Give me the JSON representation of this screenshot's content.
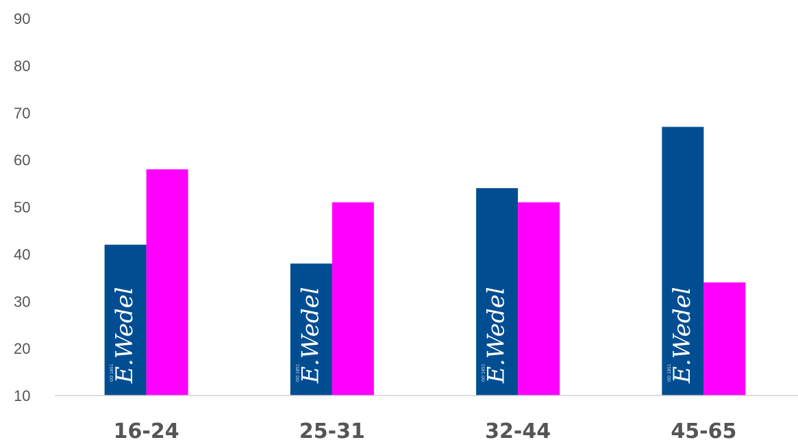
{
  "chart_data": {
    "type": "bar",
    "categories": [
      "16-24",
      "25-31",
      "32-44",
      "45-65"
    ],
    "series": [
      {
        "values": [
          42,
          38,
          54,
          67
        ],
        "color": "#004d92"
      },
      {
        "values": [
          58,
          51,
          51,
          34
        ],
        "color": "#ff00ff"
      }
    ],
    "ylim": [
      10,
      90
    ],
    "yticks": [
      10,
      20,
      30,
      40,
      50,
      60,
      70,
      80,
      90
    ],
    "grid": false,
    "title": "",
    "xlabel": "",
    "ylabel": "",
    "bar_logo": {
      "text": "E.Wedel",
      "small_text": "OD 1851",
      "icon": "e-wedel-logo-icon"
    }
  }
}
